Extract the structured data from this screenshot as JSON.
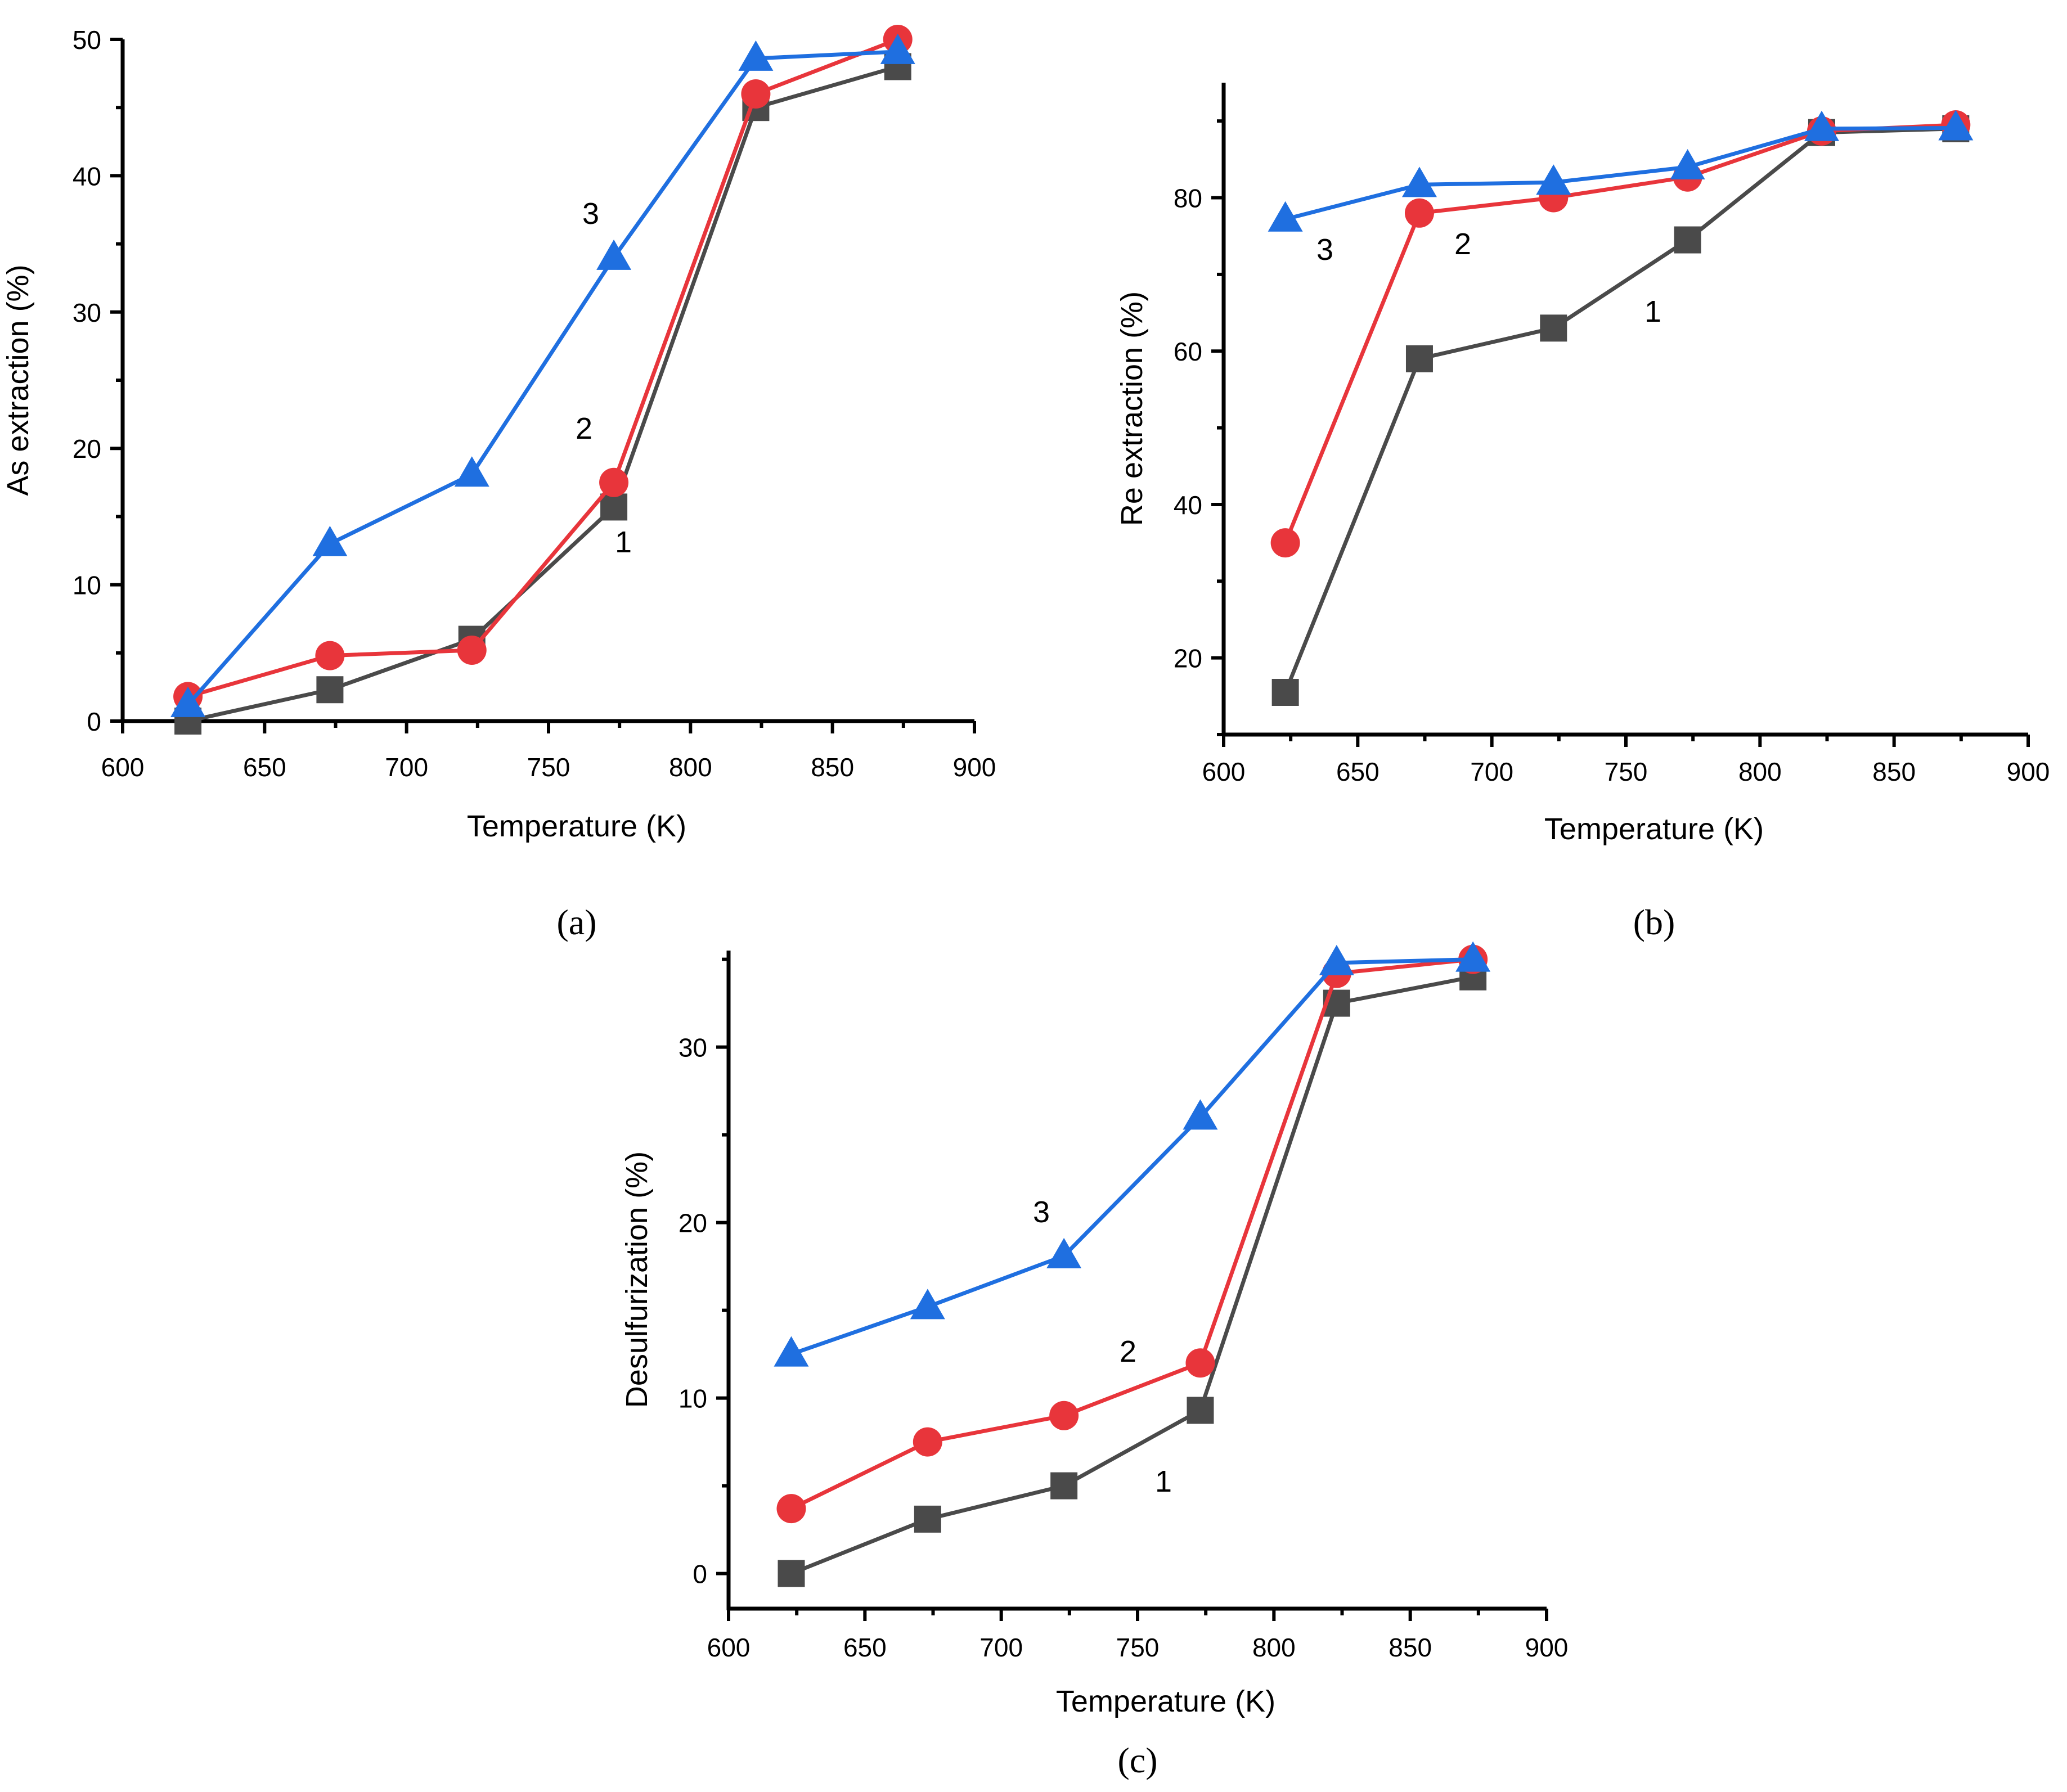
{
  "colors": {
    "series1": "#4a4a4a",
    "series2": "#e8353b",
    "series3": "#1f6fe0"
  },
  "chart_data": [
    {
      "type": "line",
      "panel_label": "(a)",
      "xlabel": "Temperature (K)",
      "ylabel": "As extraction (%)",
      "xlim": [
        600,
        900
      ],
      "ylim": [
        0,
        50
      ],
      "xticks": [
        600,
        650,
        700,
        750,
        800,
        850,
        900
      ],
      "yticks": [
        0,
        10,
        20,
        30,
        40,
        50
      ],
      "x": [
        623,
        673,
        723,
        773,
        823,
        873
      ],
      "series": [
        {
          "label": "1",
          "marker": "square",
          "values": [
            0,
            2.3,
            6.0,
            15.7,
            45.0,
            48.0
          ]
        },
        {
          "label": "2",
          "marker": "circle",
          "values": [
            1.8,
            4.8,
            5.2,
            17.5,
            46.0,
            50.0
          ]
        },
        {
          "label": "3",
          "marker": "triangle",
          "values": [
            1.2,
            13.0,
            18.1,
            34.0,
            48.6,
            49.1
          ]
        }
      ]
    },
    {
      "type": "line",
      "panel_label": "(b)",
      "xlabel": "Temperature (K)",
      "ylabel": "Re extraction (%)",
      "xlim": [
        600,
        900
      ],
      "ylim": [
        10,
        95
      ],
      "xticks": [
        600,
        650,
        700,
        750,
        800,
        850,
        900
      ],
      "yticks": [
        20,
        40,
        60,
        80
      ],
      "x": [
        623,
        673,
        723,
        773,
        823,
        873
      ],
      "series": [
        {
          "label": "1",
          "marker": "square",
          "values": [
            15.5,
            59.0,
            63.0,
            74.5,
            88.5,
            89.0
          ]
        },
        {
          "label": "2",
          "marker": "circle",
          "values": [
            35.0,
            78.0,
            80.0,
            82.7,
            88.7,
            89.5
          ]
        },
        {
          "label": "3",
          "marker": "triangle",
          "values": [
            77.2,
            81.7,
            82.0,
            84.0,
            89.0,
            89.1
          ]
        }
      ]
    },
    {
      "type": "line",
      "panel_label": "(c)",
      "xlabel": "Temperature (K)",
      "ylabel": "Desulfurization (%)",
      "xlim": [
        600,
        900
      ],
      "ylim": [
        -2,
        35.5
      ],
      "xticks": [
        600,
        650,
        700,
        750,
        800,
        850,
        900
      ],
      "yticks": [
        0,
        10,
        20,
        30
      ],
      "x": [
        623,
        673,
        723,
        773,
        823,
        873
      ],
      "series": [
        {
          "label": "1",
          "marker": "square",
          "values": [
            0,
            3.1,
            5.0,
            9.3,
            32.5,
            34.0
          ]
        },
        {
          "label": "2",
          "marker": "circle",
          "values": [
            3.7,
            7.5,
            9.0,
            12.0,
            34.2,
            35.0
          ]
        },
        {
          "label": "3",
          "marker": "triangle",
          "values": [
            12.5,
            15.2,
            18.1,
            26.0,
            34.8,
            35.0
          ]
        }
      ]
    }
  ]
}
